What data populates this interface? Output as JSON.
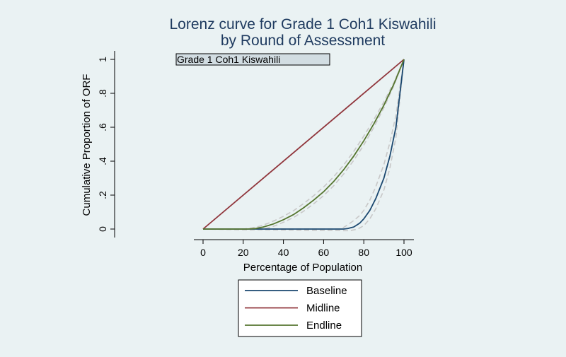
{
  "chart_data": {
    "type": "line",
    "title_line1": "Lorenz curve for Grade 1 Coh1 Kiswahili",
    "title_line2": "by Round of Assessment",
    "subtitle_box": "Grade 1 Coh1 Kiswahili",
    "xlabel": "Percentage of Population",
    "ylabel": "Cumulative Proportion of ORF",
    "xlim": [
      0,
      100
    ],
    "ylim": [
      0,
      1
    ],
    "xticks": [
      0,
      20,
      40,
      60,
      80,
      100
    ],
    "xtick_labels": [
      "0",
      "20",
      "40",
      "60",
      "80",
      "100"
    ],
    "yticks": [
      0,
      0.2,
      0.4,
      0.6,
      0.8,
      1
    ],
    "ytick_labels": [
      "0",
      ".2",
      ".4",
      ".6",
      ".8",
      "1"
    ],
    "grid": false,
    "legend_position": "bottom",
    "series": [
      {
        "name": "Baseline",
        "color": "#1a476f",
        "x": [
          0,
          70,
          72,
          75,
          78,
          80,
          83,
          86,
          90,
          93,
          96,
          100
        ],
        "y": [
          0,
          0,
          0.003,
          0.012,
          0.035,
          0.06,
          0.11,
          0.18,
          0.3,
          0.43,
          0.6,
          1.0
        ]
      },
      {
        "name": "Midline",
        "color": "#90353b",
        "x": [
          0,
          100
        ],
        "y": [
          0,
          1
        ]
      },
      {
        "name": "Endline",
        "color": "#55752f",
        "x": [
          0,
          22,
          26,
          30,
          35,
          40,
          45,
          50,
          55,
          60,
          65,
          70,
          75,
          80,
          85,
          90,
          95,
          100
        ],
        "y": [
          0,
          0,
          0.003,
          0.012,
          0.03,
          0.055,
          0.085,
          0.125,
          0.17,
          0.22,
          0.28,
          0.35,
          0.43,
          0.52,
          0.62,
          0.73,
          0.855,
          1.0
        ]
      }
    ],
    "confidence_bands": [
      {
        "color": "#c8c8c8",
        "x": [
          0,
          73,
          75,
          77,
          80,
          83,
          86,
          90,
          93,
          96,
          100
        ],
        "y": [
          0,
          -0.01,
          -0.005,
          0.0,
          0.02,
          0.06,
          0.12,
          0.23,
          0.36,
          0.54,
          1.0
        ]
      },
      {
        "color": "#c8c8c8",
        "x": [
          0,
          68,
          70,
          72,
          75,
          78,
          80,
          83,
          86,
          90,
          93,
          96,
          100
        ],
        "y": [
          0,
          0,
          0.01,
          0.025,
          0.05,
          0.08,
          0.11,
          0.17,
          0.25,
          0.38,
          0.51,
          0.67,
          1.0
        ]
      },
      {
        "color": "#c8c8c8",
        "x": [
          0,
          24,
          28,
          32,
          36,
          40,
          45,
          50,
          55,
          60,
          65,
          70,
          75,
          80,
          85,
          90,
          95,
          100
        ],
        "y": [
          0,
          -0.005,
          -0.002,
          0.006,
          0.02,
          0.04,
          0.068,
          0.105,
          0.148,
          0.197,
          0.255,
          0.325,
          0.405,
          0.495,
          0.6,
          0.715,
          0.845,
          1.0
        ]
      },
      {
        "color": "#c8c8c8",
        "x": [
          0,
          20,
          24,
          28,
          32,
          36,
          40,
          45,
          50,
          55,
          60,
          65,
          70,
          75,
          80,
          85,
          90,
          95,
          100
        ],
        "y": [
          0,
          0,
          0.006,
          0.016,
          0.032,
          0.052,
          0.075,
          0.108,
          0.15,
          0.196,
          0.248,
          0.308,
          0.378,
          0.458,
          0.548,
          0.645,
          0.75,
          0.865,
          1.0
        ]
      }
    ]
  }
}
